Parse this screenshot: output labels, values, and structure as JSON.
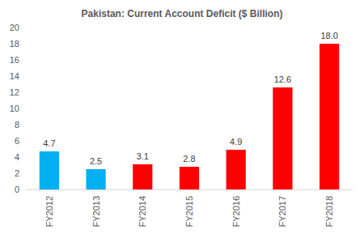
{
  "chart_data": {
    "type": "bar",
    "title": "Pakistan: Current Account Deficit ($ Billion)",
    "categories": [
      "FY2012",
      "FY2013",
      "FY2014",
      "FY2015",
      "FY2016",
      "FY2017",
      "FY2018"
    ],
    "values": [
      4.7,
      2.5,
      3.1,
      2.8,
      4.9,
      12.6,
      18.0
    ],
    "value_labels": [
      "4.7",
      "2.5",
      "3.1",
      "2.8",
      "4.9",
      "12.6",
      "18.0"
    ],
    "colors": [
      "#00b0f0",
      "#00b0f0",
      "#ff0000",
      "#ff0000",
      "#ff0000",
      "#ff0000",
      "#ff0000"
    ],
    "ylim": [
      0,
      20
    ],
    "yticks": [
      0,
      2,
      4,
      6,
      8,
      10,
      12,
      14,
      16,
      18,
      20
    ],
    "grid": false,
    "data_labels": true
  }
}
